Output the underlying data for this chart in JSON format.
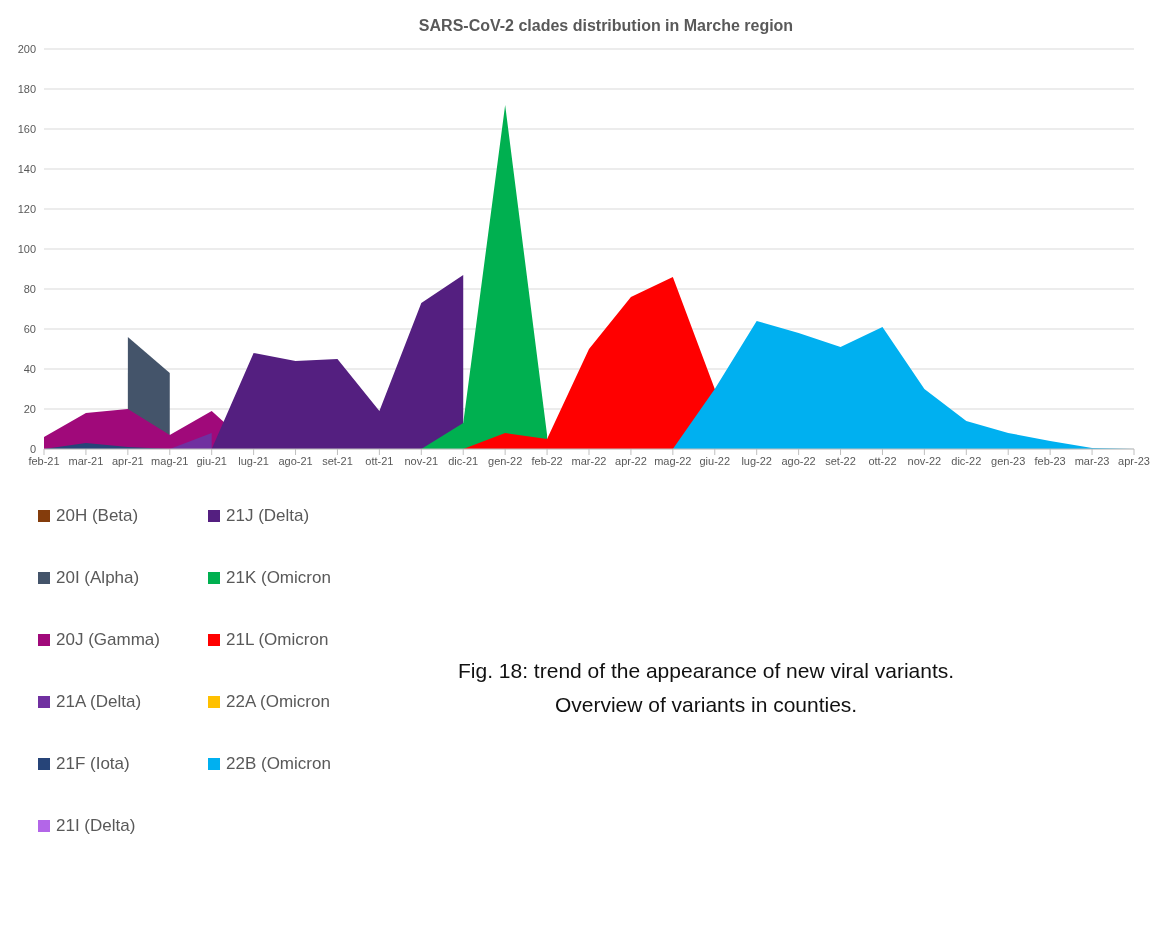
{
  "chart_data": {
    "type": "area",
    "title": "SARS-CoV-2 clades distribution in Marche region",
    "categories": [
      "feb-21",
      "mar-21",
      "apr-21",
      "mag-21",
      "giu-21",
      "lug-21",
      "ago-21",
      "set-21",
      "ott-21",
      "nov-21",
      "dic-21",
      "gen-22",
      "feb-22",
      "mar-22",
      "apr-22",
      "mag-22",
      "giu-22",
      "lug-22",
      "ago-22",
      "set-22",
      "ott-22",
      "nov-22",
      "dic-22",
      "gen-23",
      "feb-23",
      "mar-23",
      "apr-23"
    ],
    "series": [
      {
        "name": "20H (Beta)",
        "color": "#843c0c",
        "values": [
          null,
          null,
          null,
          null,
          null,
          null,
          null,
          null,
          null,
          null,
          null,
          null,
          null,
          null,
          null,
          null,
          null,
          null,
          null,
          null,
          null,
          null,
          null,
          null,
          null,
          null,
          null
        ]
      },
      {
        "name": "20I (Alpha)",
        "color": "#44546a",
        "values": [
          null,
          null,
          56,
          38,
          null,
          null,
          null,
          null,
          null,
          null,
          null,
          null,
          null,
          null,
          null,
          null,
          null,
          null,
          null,
          null,
          null,
          null,
          null,
          null,
          null,
          null,
          null
        ]
      },
      {
        "name": "20J (Gamma)",
        "color": "#a0097a",
        "values": [
          6,
          18,
          20,
          7,
          19,
          0,
          null,
          null,
          null,
          null,
          null,
          null,
          null,
          null,
          null,
          null,
          null,
          null,
          null,
          null,
          null,
          null,
          null,
          null,
          null,
          null,
          null
        ]
      },
      {
        "name": "21A (Delta)",
        "color": "#7030a0",
        "values": [
          null,
          null,
          null,
          0,
          8,
          null,
          null,
          null,
          null,
          null,
          null,
          null,
          null,
          null,
          null,
          null,
          null,
          null,
          null,
          null,
          null,
          null,
          null,
          null,
          null,
          null,
          null
        ]
      },
      {
        "name": "21F (Iota)",
        "color": "#264478",
        "values": [
          0,
          3,
          1,
          0,
          null,
          null,
          null,
          null,
          null,
          null,
          null,
          null,
          null,
          null,
          null,
          null,
          null,
          null,
          null,
          null,
          null,
          null,
          null,
          null,
          null,
          null,
          null
        ]
      },
      {
        "name": "21I (Delta)",
        "color": "#b366e8",
        "values": [
          null,
          null,
          null,
          null,
          null,
          null,
          null,
          null,
          null,
          null,
          null,
          null,
          null,
          null,
          null,
          null,
          null,
          null,
          null,
          null,
          null,
          null,
          null,
          null,
          null,
          null,
          null
        ]
      },
      {
        "name": "21J (Delta)",
        "color": "#541f80",
        "values": [
          null,
          null,
          null,
          null,
          0,
          48,
          44,
          45,
          19,
          73,
          87,
          null,
          null,
          null,
          null,
          null,
          null,
          null,
          null,
          null,
          null,
          null,
          null,
          null,
          null,
          null,
          null
        ]
      },
      {
        "name": "21K (Omicron",
        "color": "#00b050",
        "values": [
          null,
          null,
          null,
          null,
          null,
          null,
          null,
          null,
          null,
          0,
          13,
          172,
          7,
          null,
          null,
          null,
          null,
          null,
          null,
          null,
          null,
          null,
          null,
          null,
          null,
          null,
          null
        ]
      },
      {
        "name": "21L (Omicron",
        "color": "#ff0000",
        "values": [
          null,
          null,
          null,
          null,
          null,
          null,
          null,
          null,
          null,
          null,
          0,
          8,
          5,
          50,
          76,
          86,
          30,
          0,
          null,
          null,
          null,
          null,
          null,
          null,
          null,
          null,
          null
        ]
      },
      {
        "name": "22A (Omicron",
        "color": "#ffc000",
        "values": [
          null,
          null,
          null,
          null,
          null,
          null,
          null,
          null,
          null,
          null,
          null,
          null,
          null,
          null,
          null,
          null,
          null,
          null,
          null,
          null,
          null,
          null,
          null,
          null,
          null,
          null,
          null
        ]
      },
      {
        "name": "22B (Omicron",
        "color": "#00b0f0",
        "values": [
          null,
          null,
          null,
          null,
          null,
          null,
          null,
          null,
          null,
          null,
          null,
          null,
          null,
          null,
          null,
          0,
          30,
          64,
          58,
          51,
          61,
          30,
          14,
          8,
          4,
          0.5,
          0
        ]
      }
    ],
    "ylim": [
      0,
      200
    ],
    "yticks": [
      0,
      20,
      40,
      60,
      80,
      100,
      120,
      140,
      160,
      180,
      200
    ],
    "grid": "y",
    "legend": "bottom",
    "annotations": [
      "Fig. 18: trend of the appearance of new viral variants.",
      "Overview of variants in counties."
    ]
  }
}
